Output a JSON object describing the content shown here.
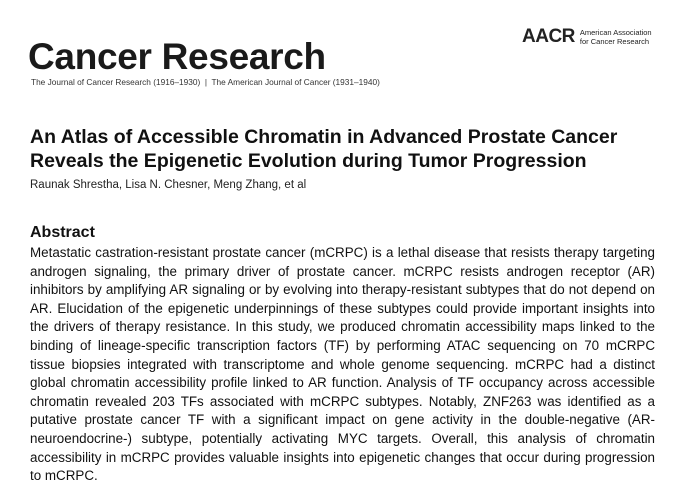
{
  "header": {
    "journal": "Cancer Research",
    "subtitle": "The Journal of Cancer Research (1916–1930)  |  The American Journal of Cancer (1931–1940)",
    "logo": {
      "mark": "AACR",
      "lines": [
        "American Association",
        "for Cancer Research"
      ]
    }
  },
  "article": {
    "title_lines": [
      "An Atlas of Accessible Chromatin in Advanced Prostate Cancer",
      "Reveals the Epigenetic Evolution during Tumor Progression"
    ],
    "authors": "Raunak Shrestha, Lisa N. Chesner, Meng Zhang, et al"
  },
  "abstract": {
    "heading": "Abstract",
    "text": "Metastatic castration-resistant prostate cancer (mCRPC) is a lethal disease that resists therapy targeting androgen signaling, the primary driver of prostate cancer. mCRPC resists androgen receptor (AR) inhibitors by amplifying AR signaling or by evolving into therapy-resistant subtypes that do not depend on AR. Elucidation of the epigenetic underpinnings of these subtypes could provide important insights into the drivers of therapy resistance. In this study, we produced chromatin accessibility maps linked to the binding of lineage-specific transcription factors (TF) by performing ATAC sequencing on 70 mCRPC tissue biopsies integrated with transcriptome and whole genome sequencing. mCRPC had a distinct global chromatin accessibility profile linked to AR function. Analysis of TF occupancy across accessible chromatin revealed 203 TFs associated with mCRPC subtypes. Notably, ZNF263 was identified as a putative prostate cancer TF with a significant impact on gene activity in the double-negative (AR- neuroendocrine-) subtype, potentially activating MYC targets. Overall, this analysis of chromatin accessibility in mCRPC provides valuable insights into epigenetic changes that occur during progression to mCRPC."
  }
}
